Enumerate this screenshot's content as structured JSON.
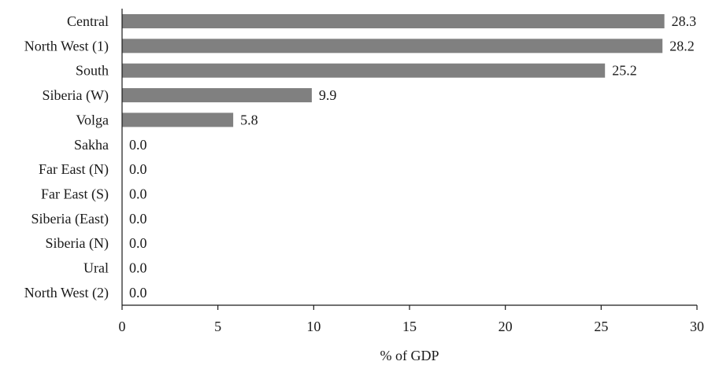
{
  "chart_data": {
    "type": "bar",
    "orientation": "horizontal",
    "categories": [
      "Central",
      "North West (1)",
      "South",
      "Siberia (W)",
      "Volga",
      "Sakha",
      "Far East (N)",
      "Far East (S)",
      "Siberia (East)",
      "Siberia (N)",
      "Ural",
      "North West (2)"
    ],
    "values": [
      28.3,
      28.2,
      25.2,
      9.9,
      5.8,
      0.0,
      0.0,
      0.0,
      0.0,
      0.0,
      0.0,
      0.0
    ],
    "data_labels": [
      "28.3",
      "28.2",
      "25.2",
      "9.9",
      "5.8",
      "0.0",
      "0.0",
      "0.0",
      "0.0",
      "0.0",
      "0.0",
      "0.0"
    ],
    "xlabel": "% of GDP",
    "ylabel": "",
    "xlim": [
      0,
      30
    ],
    "x_ticks": [
      0,
      5,
      10,
      15,
      20,
      25,
      30
    ],
    "x_tick_labels": [
      "0",
      "5",
      "10",
      "15",
      "20",
      "25",
      "30"
    ],
    "grid": false,
    "legend": "none",
    "bar_color": "#808080"
  }
}
